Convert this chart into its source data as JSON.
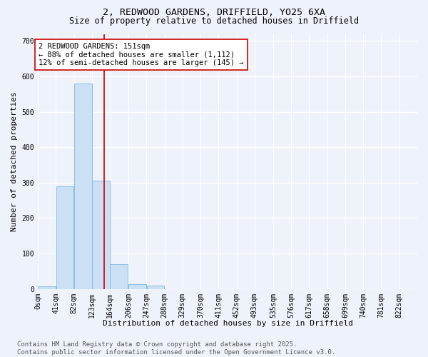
{
  "title_line1": "2, REDWOOD GARDENS, DRIFFIELD, YO25 6XA",
  "title_line2": "Size of property relative to detached houses in Driffield",
  "xlabel": "Distribution of detached houses by size in Driffield",
  "ylabel": "Number of detached properties",
  "bar_color": "#cce0f5",
  "bar_edge_color": "#7ab8e0",
  "background_color": "#eef3fb",
  "grid_color": "#ffffff",
  "bins": [
    0,
    41,
    82,
    123,
    164,
    206,
    247,
    288,
    329,
    370,
    411,
    452,
    493,
    535,
    576,
    617,
    658,
    699,
    740,
    781,
    822
  ],
  "bin_labels": [
    "0sqm",
    "41sqm",
    "82sqm",
    "123sqm",
    "164sqm",
    "206sqm",
    "247sqm",
    "288sqm",
    "329sqm",
    "370sqm",
    "411sqm",
    "452sqm",
    "493sqm",
    "535sqm",
    "576sqm",
    "617sqm",
    "658sqm",
    "699sqm",
    "740sqm",
    "781sqm",
    "822sqm"
  ],
  "values": [
    8,
    290,
    580,
    305,
    70,
    13,
    10,
    0,
    0,
    0,
    0,
    0,
    0,
    0,
    0,
    0,
    0,
    0,
    0,
    0
  ],
  "ylim": [
    0,
    720
  ],
  "yticks": [
    0,
    100,
    200,
    300,
    400,
    500,
    600,
    700
  ],
  "property_size": 151,
  "vline_color": "#cc0000",
  "annotation_text": "2 REDWOOD GARDENS: 151sqm\n← 88% of detached houses are smaller (1,112)\n12% of semi-detached houses are larger (145) →",
  "annotation_box_color": "#ffffff",
  "annotation_box_edge": "#cc0000",
  "footer_text": "Contains HM Land Registry data © Crown copyright and database right 2025.\nContains public sector information licensed under the Open Government Licence v3.0.",
  "title_fontsize": 9.5,
  "subtitle_fontsize": 8.5,
  "axis_label_fontsize": 8,
  "tick_fontsize": 7,
  "annotation_fontsize": 7.5,
  "footer_fontsize": 6.5
}
